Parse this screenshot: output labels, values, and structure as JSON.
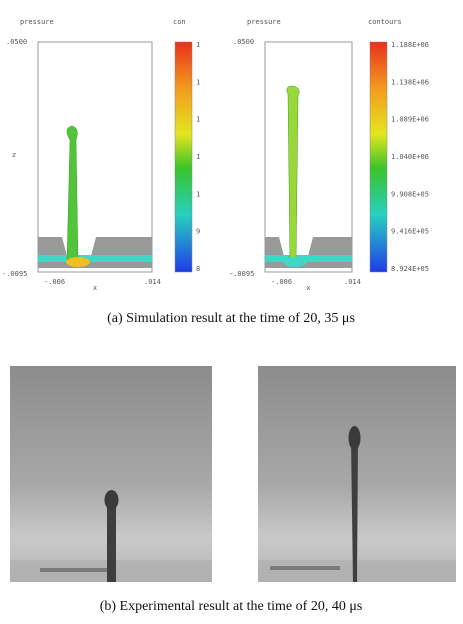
{
  "simulations": [
    {
      "variable": "pressure",
      "legend_title": "con",
      "y_top": ".0500",
      "y_bottom": "-.0095",
      "y_label": "z",
      "x_label": "x",
      "x_left": "-.006",
      "x_right": ".014",
      "legend_labels": [
        "1",
        "1",
        "1",
        "1",
        "1",
        "9",
        "8"
      ]
    },
    {
      "variable": "pressure",
      "legend_title": "contours",
      "y_top": ".0500",
      "y_bottom": "-.0095",
      "x_label": "x",
      "x_left": "-.006",
      "x_right": ".014",
      "legend_labels": [
        "1.188E+06",
        "1.138E+06",
        "1.089E+06",
        "1.040E+06",
        "9.908E+05",
        "9.416E+05",
        "8.924E+05"
      ]
    }
  ],
  "captions": [
    "(a)  Simulation result at the time of 20, 35 μs",
    "(b)  Experimental result at the time of 20, 40 μs"
  ]
}
